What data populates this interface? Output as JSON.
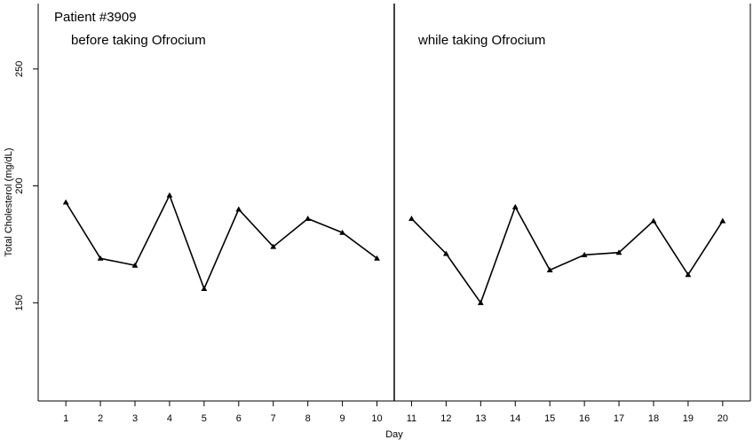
{
  "chart_data": {
    "type": "line",
    "patient_label": "Patient #3909",
    "xlabel": "Day",
    "ylabel": "Total Cholesterol (mg/dL)",
    "xlim": [
      0.2,
      20.8
    ],
    "ylim": [
      108,
      278
    ],
    "x_ticks": [
      1,
      2,
      3,
      4,
      5,
      6,
      7,
      8,
      9,
      10,
      11,
      12,
      13,
      14,
      15,
      16,
      17,
      18,
      19,
      20
    ],
    "y_ticks": [
      150,
      200,
      250
    ],
    "phase_divider_x": 10.5,
    "phases": [
      {
        "name": "before taking Ofrocium",
        "x": [
          1,
          2,
          3,
          4,
          5,
          6,
          7,
          8,
          9,
          10
        ],
        "values": [
          193,
          169,
          166,
          196,
          156,
          190,
          174,
          186,
          180,
          169
        ]
      },
      {
        "name": "while taking Ofrocium",
        "x": [
          11,
          12,
          13,
          14,
          15,
          16,
          17,
          18,
          19,
          20
        ],
        "values": [
          186,
          171,
          150,
          191,
          164,
          170.5,
          171.5,
          185,
          162,
          185
        ]
      }
    ]
  }
}
